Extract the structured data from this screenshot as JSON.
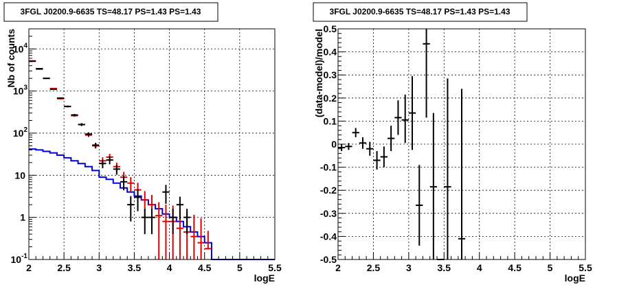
{
  "colors": {
    "data": "#000000",
    "model_points": "#e00000",
    "background_model": "#0000dd"
  },
  "chart_data": [
    {
      "type": "scatter",
      "title": "3FGL J0200.9-6635 TS=48.17 PS=1.43 PS=1.43",
      "xlabel": "logE",
      "ylabel": "Nb of counts",
      "xlim": [
        2,
        5.5
      ],
      "ylim": [
        0.1,
        30000
      ],
      "yscale": "log",
      "grid": true,
      "x_ticks": [
        "2",
        "2.5",
        "3",
        "3.5",
        "4",
        "4.5",
        "5",
        "5.5"
      ],
      "y_ticks": [
        {
          "value": 0.1,
          "label": "10",
          "exp": "-1"
        },
        {
          "value": 1,
          "label": "1",
          "exp": ""
        },
        {
          "value": 10,
          "label": "10",
          "exp": ""
        },
        {
          "value": 100,
          "label": "10",
          "exp": "2"
        },
        {
          "value": 1000,
          "label": "10",
          "exp": "3"
        },
        {
          "value": 10000,
          "label": "10",
          "exp": "4"
        }
      ],
      "bin_width": 0.1,
      "series": [
        {
          "role": "data",
          "x": [
            2.05,
            2.15,
            2.25,
            2.35,
            2.45,
            2.55,
            2.65,
            2.75,
            2.85,
            2.95,
            3.05,
            3.15,
            3.25,
            3.35,
            3.45,
            3.55,
            3.65,
            3.75,
            3.85,
            3.95,
            4.05,
            4.15,
            4.25
          ],
          "y": [
            5100,
            3400,
            2000,
            1100,
            680,
            430,
            270,
            160,
            95,
            52,
            19,
            23,
            14,
            7,
            2,
            3,
            1,
            1,
            0.1,
            4,
            1,
            2,
            1
          ],
          "yerr_low": [
            70,
            58,
            45,
            33,
            26,
            21,
            16,
            12,
            9.5,
            7,
            4.3,
            4.8,
            3.7,
            2.6,
            1.2,
            1.6,
            0.6,
            0.6,
            0,
            1.9,
            0.6,
            1.1,
            0.6
          ],
          "yerr_high": [
            70,
            58,
            45,
            33,
            26,
            21,
            16,
            12,
            9.5,
            7,
            4.3,
            4.8,
            3.7,
            2.6,
            1.2,
            1.6,
            0.6,
            0.6,
            0,
            1.9,
            0.6,
            1.1,
            0.6
          ]
        },
        {
          "role": "model",
          "x": [
            2.05,
            2.15,
            2.25,
            2.35,
            2.45,
            2.55,
            2.65,
            2.75,
            2.85,
            2.95,
            3.05,
            3.15,
            3.25,
            3.35,
            3.45,
            3.55,
            3.65,
            3.75,
            3.85,
            3.95,
            4.05,
            4.15,
            4.25,
            4.35,
            4.45,
            4.55
          ],
          "y": [
            5200,
            3300,
            2000,
            1150,
            660,
            430,
            260,
            160,
            90,
            50,
            22,
            27,
            16,
            9,
            6.5,
            4.5,
            2.6,
            2,
            1.1,
            0.8,
            0.8,
            0.55,
            0.45,
            0.35,
            0.25,
            0.18
          ],
          "yerr_low": [
            72,
            57,
            45,
            34,
            26,
            21,
            16,
            12.6,
            9.5,
            7,
            4.7,
            5.2,
            4,
            3,
            2.5,
            2.1,
            1.6,
            1.4,
            1.0,
            0.75,
            0.75,
            0.5,
            0.4,
            0.3,
            0.2,
            0
          ],
          "yerr_high": [
            72,
            57,
            45,
            34,
            26,
            21,
            16,
            12.6,
            9.5,
            7,
            4.7,
            5.2,
            4,
            3,
            2.5,
            2.1,
            1.6,
            1.4,
            1.2,
            1.2,
            1.1,
            1.0,
            0.9,
            0.8,
            0.7,
            0.3
          ]
        },
        {
          "role": "background",
          "type": "step",
          "edges": [
            2.0,
            2.1,
            2.2,
            2.3,
            2.4,
            2.5,
            2.6,
            2.7,
            2.8,
            2.9,
            3.0,
            3.1,
            3.2,
            3.3,
            3.4,
            3.5,
            3.6,
            3.7,
            3.8,
            3.9,
            4.0,
            4.1,
            4.2,
            4.3,
            4.4,
            4.5,
            4.6,
            5.5
          ],
          "y": [
            42,
            40,
            37,
            34,
            30,
            26,
            22,
            19,
            16,
            13,
            9,
            8,
            6.5,
            5,
            4,
            3.2,
            2.6,
            2,
            1.6,
            1.2,
            1,
            0.8,
            0.6,
            0.45,
            0.35,
            0.25,
            0.1
          ]
        }
      ]
    },
    {
      "type": "scatter",
      "title": "3FGL J0200.9-6635 TS=48.17 PS=1.43 PS=1.43",
      "xlabel": "logE",
      "ylabel": "(data-model)/model",
      "xlim": [
        2,
        5.5
      ],
      "ylim": [
        -0.5,
        0.5
      ],
      "grid": true,
      "x_ticks": [
        "2",
        "2.5",
        "3",
        "3.5",
        "4",
        "4.5",
        "5",
        "5.5"
      ],
      "y_ticks": [
        "-0.5",
        "-0.4",
        "-0.3",
        "-0.2",
        "-0.1",
        "0",
        "0.1",
        "0.2",
        "0.3",
        "0.4",
        "0.5"
      ],
      "bin_width": 0.1,
      "series": [
        {
          "role": "residual",
          "x": [
            2.05,
            2.15,
            2.25,
            2.35,
            2.45,
            2.55,
            2.65,
            2.75,
            2.85,
            2.95,
            3.05,
            3.15,
            3.25,
            3.35,
            3.45,
            3.55,
            3.75
          ],
          "y": [
            -0.015,
            -0.01,
            0.05,
            0.005,
            -0.02,
            -0.07,
            -0.055,
            0.025,
            0.115,
            0.105,
            0.135,
            -0.265,
            0.435,
            -0.185,
            -0.5,
            -0.185,
            -0.41
          ],
          "yerr_low": [
            0.015,
            0.015,
            0.02,
            0.025,
            0.03,
            0.04,
            0.045,
            0.055,
            0.075,
            0.1,
            0.16,
            0.175,
            0.32,
            0.32,
            0,
            0.32,
            0.09
          ],
          "yerr_high": [
            0.015,
            0.015,
            0.02,
            0.025,
            0.03,
            0.04,
            0.045,
            0.055,
            0.075,
            0.11,
            0.16,
            0.175,
            0.4,
            0.32,
            0,
            0.47,
            0.65
          ]
        }
      ]
    }
  ]
}
